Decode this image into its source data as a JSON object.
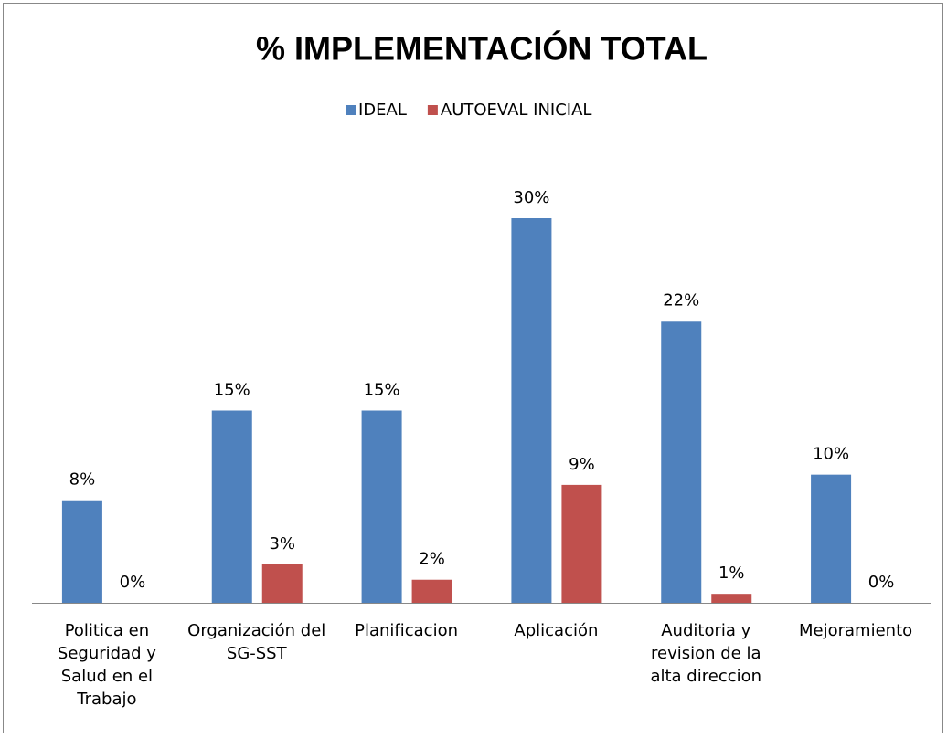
{
  "chart_data": {
    "type": "bar",
    "title": "% IMPLEMENTACIÓN TOTAL",
    "categories": [
      "Politica en Seguridad y Salud en el Trabajo",
      "Organización del SG-SST",
      "Planificacion",
      "Aplicación",
      "Auditoria y revision de la alta direccion",
      "Mejoramiento"
    ],
    "series": [
      {
        "name": "IDEAL",
        "color": "#4f81bd",
        "values": [
          8,
          15,
          15,
          30,
          22,
          10
        ],
        "value_labels": [
          "8%",
          "15%",
          "15%",
          "30%",
          "22%",
          "10%"
        ]
      },
      {
        "name": "AUTOEVAL INICIAL",
        "color": "#c0504d",
        "values": [
          0,
          3,
          1.8,
          9.2,
          0.7,
          0
        ],
        "value_labels": [
          "0%",
          "3%",
          "2%",
          "9%",
          "1%",
          "0%"
        ]
      }
    ],
    "legend": "top"
  }
}
